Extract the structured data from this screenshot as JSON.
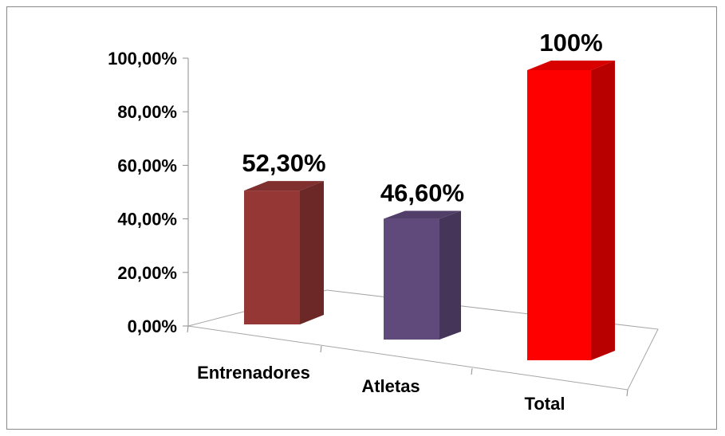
{
  "chart_data": {
    "type": "bar",
    "title": "",
    "xlabel": "",
    "ylabel": "",
    "categories": [
      "Entrenadores",
      "Atletas",
      "Total"
    ],
    "values": [
      52.3,
      46.6,
      100
    ],
    "data_labels": [
      "52,30%",
      "46,60%",
      "100%"
    ],
    "y_ticks": [
      0,
      20,
      40,
      60,
      80,
      100
    ],
    "y_tick_labels": [
      "0,00%",
      "20,00%",
      "40,00%",
      "60,00%",
      "80,00%",
      "100,00%"
    ],
    "ylim": [
      0,
      100
    ],
    "grid": false,
    "legend": "none",
    "style": "3d-column",
    "colors": {
      "Entrenadores": "#953735",
      "Atletas": "#604A7B",
      "Total": "#FF0000"
    }
  }
}
